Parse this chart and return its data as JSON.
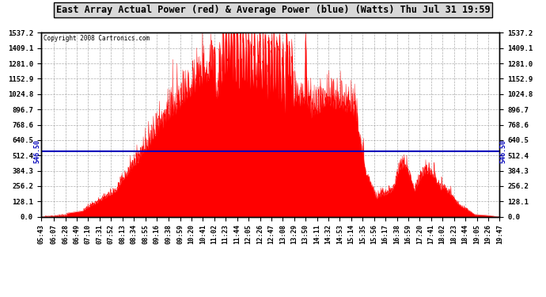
{
  "title": "East Array Actual Power (red) & Average Power (blue) (Watts) Thu Jul 31 19:59",
  "copyright": "Copyright 2008 Cartronics.com",
  "avg_power": 546.5,
  "ymax": 1537.2,
  "yticks": [
    0.0,
    128.1,
    256.2,
    384.3,
    512.4,
    640.5,
    768.6,
    896.7,
    1024.8,
    1152.9,
    1281.0,
    1409.1,
    1537.2
  ],
  "bg_color": "#ffffff",
  "plot_bg_color": "#ffffff",
  "red_color": "#ff0000",
  "blue_color": "#0000bb",
  "grid_color": "#999999",
  "avg_label": "546.50",
  "xtick_labels": [
    "05:43",
    "06:07",
    "06:28",
    "06:49",
    "07:10",
    "07:31",
    "07:52",
    "08:13",
    "08:34",
    "08:55",
    "09:16",
    "09:38",
    "09:59",
    "10:20",
    "10:41",
    "11:02",
    "11:23",
    "11:44",
    "12:05",
    "12:26",
    "12:47",
    "13:08",
    "13:29",
    "13:50",
    "14:11",
    "14:32",
    "14:53",
    "15:14",
    "15:35",
    "15:56",
    "16:17",
    "16:38",
    "16:59",
    "17:20",
    "17:41",
    "18:02",
    "18:23",
    "18:44",
    "19:05",
    "19:26",
    "19:47"
  ]
}
